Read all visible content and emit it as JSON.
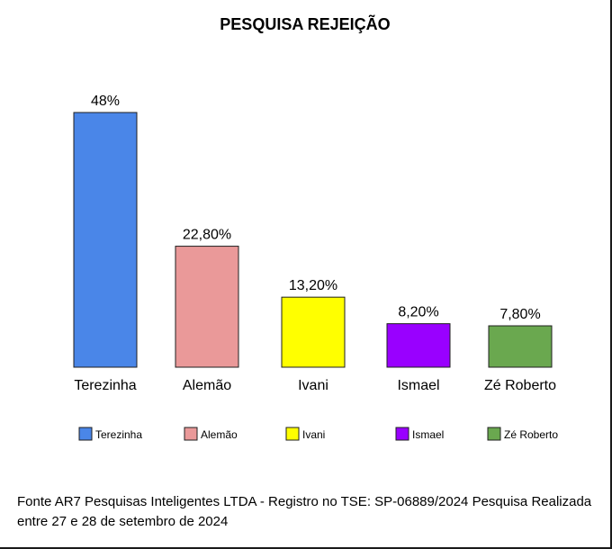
{
  "chart_data": {
    "type": "bar",
    "title": "PESQUISA REJEIÇÃO",
    "categories": [
      "Terezinha",
      "Alemão",
      "Ivani",
      "Ismael",
      "Zé Roberto"
    ],
    "values": [
      48,
      22.8,
      13.2,
      8.2,
      7.8
    ],
    "value_labels": [
      "48%",
      "22,80%",
      "13,20%",
      "8,20%",
      "7,80%"
    ],
    "colors": [
      "#4a86e8",
      "#ea9999",
      "#ffff00",
      "#9900ff",
      "#6aa84f"
    ],
    "xlabel": "",
    "ylabel": "",
    "ylim": [
      0,
      50
    ],
    "grid": false,
    "legend_position": "bottom",
    "legend": [
      "Terezinha",
      "Alemão",
      "Ivani",
      "Ismael",
      "Zé Roberto"
    ]
  },
  "footer": {
    "source_text": "Fonte AR7 Pesquisas Inteligentes LTDA - Registro no TSE: SP-06889/2024    Pesquisa Realizada entre 27 e 28 de setembro de 2024"
  }
}
